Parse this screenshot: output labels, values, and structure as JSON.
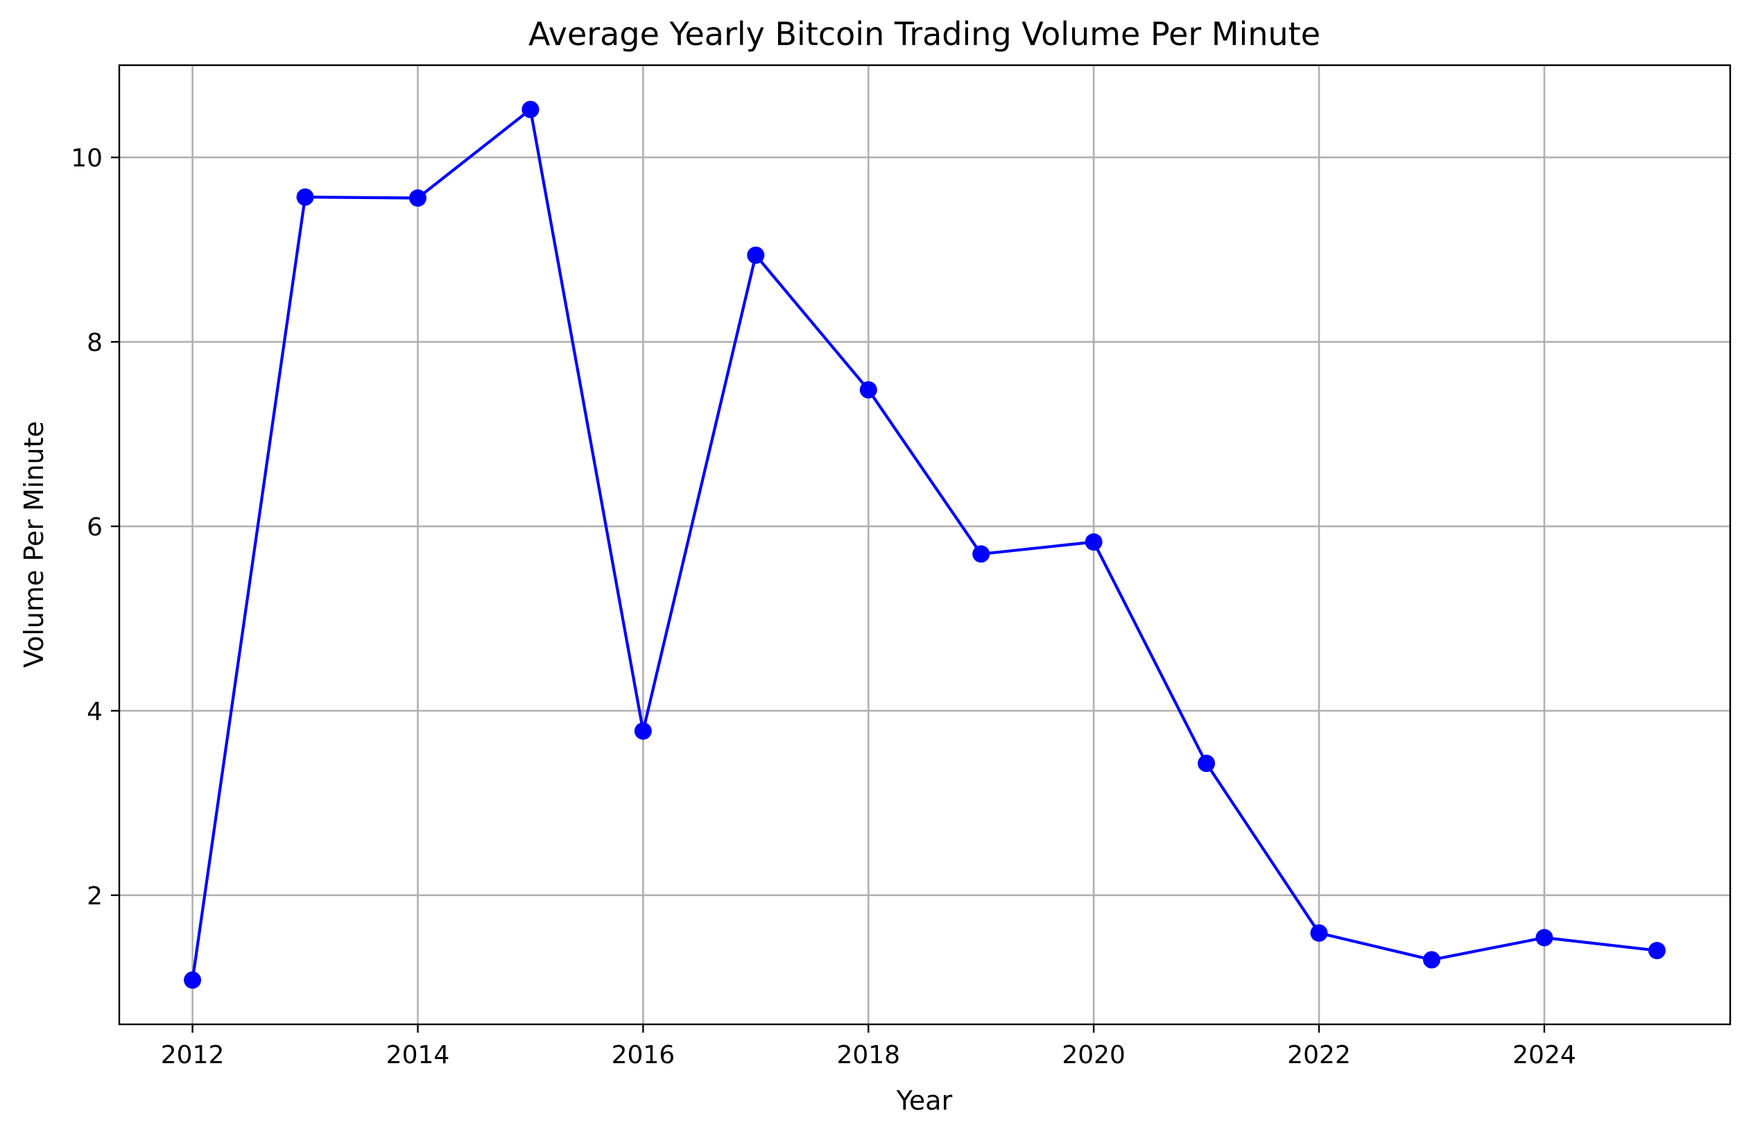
{
  "chart_data": {
    "type": "line",
    "title": "Average Yearly Bitcoin Trading Volume Per Minute",
    "xlabel": "Year",
    "ylabel": "Volume Per Minute",
    "xlim": [
      2011.35,
      2025.65
    ],
    "ylim": [
      0.6,
      11.0
    ],
    "xticks": [
      2012,
      2014,
      2016,
      2018,
      2020,
      2022,
      2024
    ],
    "yticks": [
      2,
      4,
      6,
      8,
      10
    ],
    "grid": true,
    "legend": "none",
    "series": [
      {
        "color": "#0000ff",
        "marker": "circle",
        "x": [
          2012,
          2013,
          2014,
          2015,
          2016,
          2017,
          2018,
          2019,
          2020,
          2021,
          2022,
          2023,
          2024,
          2025
        ],
        "y": [
          1.08,
          9.57,
          9.56,
          10.52,
          3.78,
          8.94,
          7.48,
          5.7,
          5.83,
          3.43,
          1.59,
          1.3,
          1.54,
          1.4
        ]
      }
    ]
  }
}
